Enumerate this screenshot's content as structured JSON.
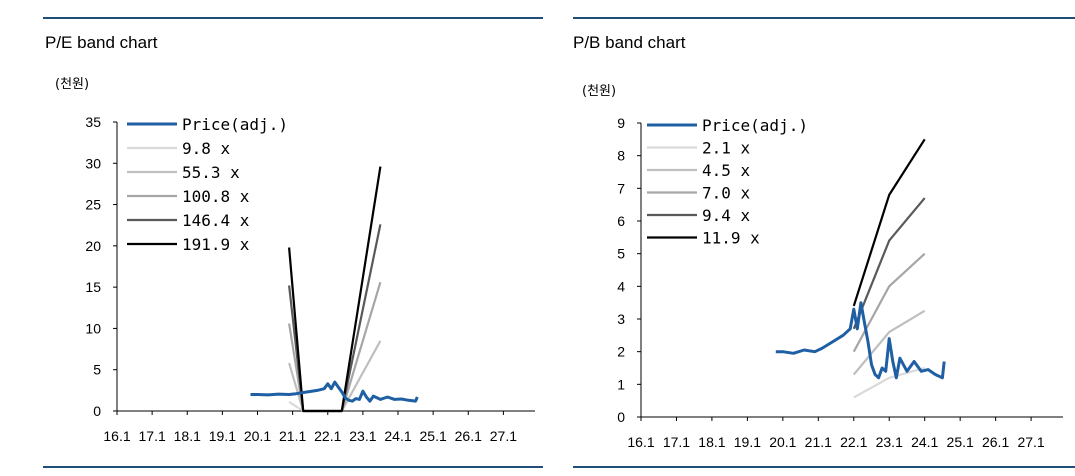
{
  "charts": [
    {
      "title": "P/E band chart",
      "unit": "(천원)",
      "chart_data": {
        "type": "line",
        "title": "P/E band chart",
        "ylabel": "(천원)",
        "xlabel": "",
        "ylim": [
          0,
          35
        ],
        "yticks": [
          0,
          5,
          10,
          15,
          20,
          25,
          30,
          35
        ],
        "xlim": [
          2016.0,
          2027.9
        ],
        "xticks": [
          2016,
          2017,
          2018,
          2019,
          2020,
          2021,
          2022,
          2023,
          2024,
          2025,
          2026,
          2027
        ],
        "xtick_labels": [
          "16.1",
          "17.1",
          "18.1",
          "19.1",
          "20.1",
          "21.1",
          "22.1",
          "23.1",
          "24.1",
          "25.1",
          "26.1",
          "27.1"
        ],
        "grid": false,
        "legend": "top-left",
        "series": [
          {
            "name": "Price(adj.)",
            "color": "#1f5fa3",
            "x": [
              2019.8,
              2020.0,
              2020.3,
              2020.6,
              2020.9,
              2021.1,
              2021.4,
              2021.7,
              2021.9,
              2022.0,
              2022.1,
              2022.2,
              2022.3,
              2022.4,
              2022.5,
              2022.6,
              2022.7,
              2022.8,
              2022.9,
              2023.0,
              2023.1,
              2023.2,
              2023.3,
              2023.5,
              2023.7,
              2023.9,
              2024.1,
              2024.3,
              2024.5,
              2024.55
            ],
            "y": [
              2.0,
              2.0,
              1.95,
              2.05,
              2.0,
              2.1,
              2.3,
              2.5,
              2.7,
              3.3,
              2.7,
              3.5,
              2.9,
              2.3,
              1.6,
              1.3,
              1.2,
              1.5,
              1.4,
              2.4,
              1.7,
              1.2,
              1.8,
              1.4,
              1.7,
              1.4,
              1.45,
              1.3,
              1.2,
              1.7
            ]
          },
          {
            "name": "9.8 x",
            "color": "#d9d9d9",
            "x": [
              2020.9,
              2021.3
            ],
            "y": [
              1.1,
              0.0
            ]
          },
          {
            "name": "55.3 x",
            "color": "#bfbfbf",
            "x": [
              2020.9,
              2021.3,
              2022.4,
              2023.5
            ],
            "y": [
              5.8,
              0.0,
              0.0,
              8.5
            ]
          },
          {
            "name": "100.8 x",
            "color": "#a6a6a6",
            "x": [
              2020.9,
              2021.3,
              2022.4,
              2023.5
            ],
            "y": [
              10.6,
              0.0,
              0.0,
              15.6
            ]
          },
          {
            "name": "146.4 x",
            "color": "#595959",
            "x": [
              2020.9,
              2021.3,
              2022.4,
              2023.5
            ],
            "y": [
              15.2,
              0.0,
              0.0,
              22.6
            ]
          },
          {
            "name": "191.9 x",
            "color": "#000000",
            "x": [
              2020.9,
              2021.3,
              2022.4,
              2023.5
            ],
            "y": [
              19.8,
              0.0,
              0.0,
              29.6
            ]
          }
        ]
      }
    },
    {
      "title": "P/B band chart",
      "unit": "(천원)",
      "chart_data": {
        "type": "line",
        "title": "P/B band chart",
        "ylabel": "(천원)",
        "xlabel": "",
        "ylim": [
          0,
          9
        ],
        "yticks": [
          0,
          1,
          2,
          3,
          4,
          5,
          6,
          7,
          8,
          9
        ],
        "xlim": [
          2016.0,
          2027.9
        ],
        "xticks": [
          2016,
          2017,
          2018,
          2019,
          2020,
          2021,
          2022,
          2023,
          2024,
          2025,
          2026,
          2027
        ],
        "xtick_labels": [
          "16.1",
          "17.1",
          "18.1",
          "19.1",
          "20.1",
          "21.1",
          "22.1",
          "23.1",
          "24.1",
          "25.1",
          "26.1",
          "27.1"
        ],
        "grid": false,
        "legend": "top-left",
        "series": [
          {
            "name": "Price(adj.)",
            "color": "#1f5fa3",
            "x": [
              2019.8,
              2020.0,
              2020.3,
              2020.6,
              2020.9,
              2021.1,
              2021.4,
              2021.7,
              2021.9,
              2022.0,
              2022.1,
              2022.2,
              2022.3,
              2022.4,
              2022.5,
              2022.6,
              2022.7,
              2022.8,
              2022.9,
              2023.0,
              2023.1,
              2023.2,
              2023.3,
              2023.5,
              2023.7,
              2023.9,
              2024.1,
              2024.3,
              2024.5,
              2024.55
            ],
            "y": [
              2.0,
              2.0,
              1.95,
              2.05,
              2.0,
              2.1,
              2.3,
              2.5,
              2.7,
              3.3,
              2.7,
              3.5,
              2.9,
              2.3,
              1.6,
              1.3,
              1.2,
              1.5,
              1.4,
              2.4,
              1.7,
              1.2,
              1.8,
              1.4,
              1.7,
              1.4,
              1.45,
              1.3,
              1.2,
              1.7
            ]
          },
          {
            "name": "2.1 x",
            "color": "#d9d9d9",
            "x": [
              2022.0,
              2023.0,
              2024.0
            ],
            "y": [
              0.6,
              1.2,
              1.5
            ]
          },
          {
            "name": "4.5 x",
            "color": "#bfbfbf",
            "x": [
              2022.0,
              2023.0,
              2024.0
            ],
            "y": [
              1.3,
              2.6,
              3.25
            ]
          },
          {
            "name": "7.0 x",
            "color": "#a6a6a6",
            "x": [
              2022.0,
              2023.0,
              2024.0
            ],
            "y": [
              2.0,
              4.0,
              5.0
            ]
          },
          {
            "name": "9.4 x",
            "color": "#595959",
            "x": [
              2022.0,
              2023.0,
              2024.0
            ],
            "y": [
              2.7,
              5.4,
              6.7
            ]
          },
          {
            "name": "11.9 x",
            "color": "#000000",
            "x": [
              2022.0,
              2023.0,
              2024.0
            ],
            "y": [
              3.4,
              6.8,
              8.5
            ]
          }
        ]
      }
    }
  ]
}
